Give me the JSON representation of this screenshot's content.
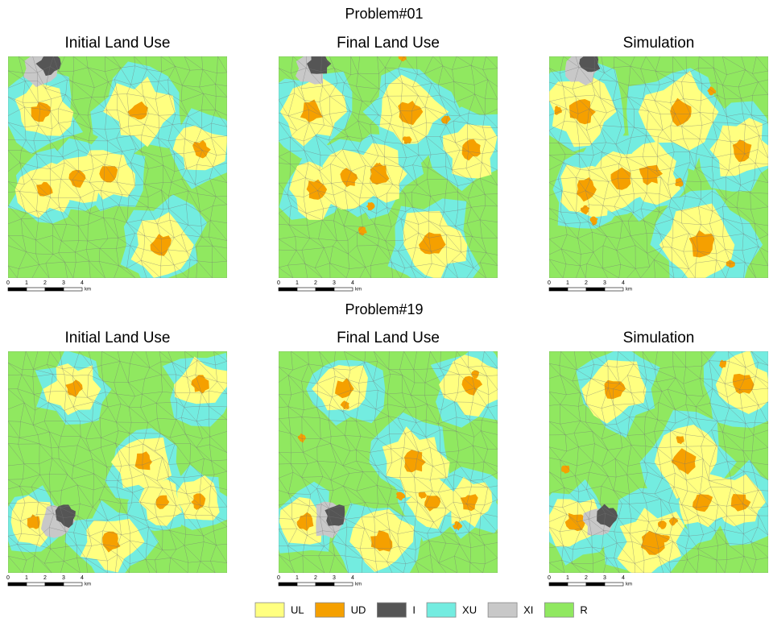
{
  "problems": [
    {
      "title": "Problem#01",
      "panels": [
        {
          "title": "Initial Land Use"
        },
        {
          "title": "Final Land Use"
        },
        {
          "title": "Simulation"
        }
      ]
    },
    {
      "title": "Problem#19",
      "panels": [
        {
          "title": "Initial Land Use"
        },
        {
          "title": "Final Land Use"
        },
        {
          "title": "Simulation"
        }
      ]
    }
  ],
  "scale_bar": {
    "labels": [
      "0",
      "1",
      "2",
      "3",
      "4"
    ],
    "unit": "km"
  },
  "legend": [
    {
      "label": "UL",
      "color": "#ffff80"
    },
    {
      "label": "UD",
      "color": "#f5a000"
    },
    {
      "label": "I",
      "color": "#555555"
    },
    {
      "label": "XU",
      "color": "#73ece0"
    },
    {
      "label": "XI",
      "color": "#c8c8c8"
    },
    {
      "label": "R",
      "color": "#90e860"
    }
  ]
}
